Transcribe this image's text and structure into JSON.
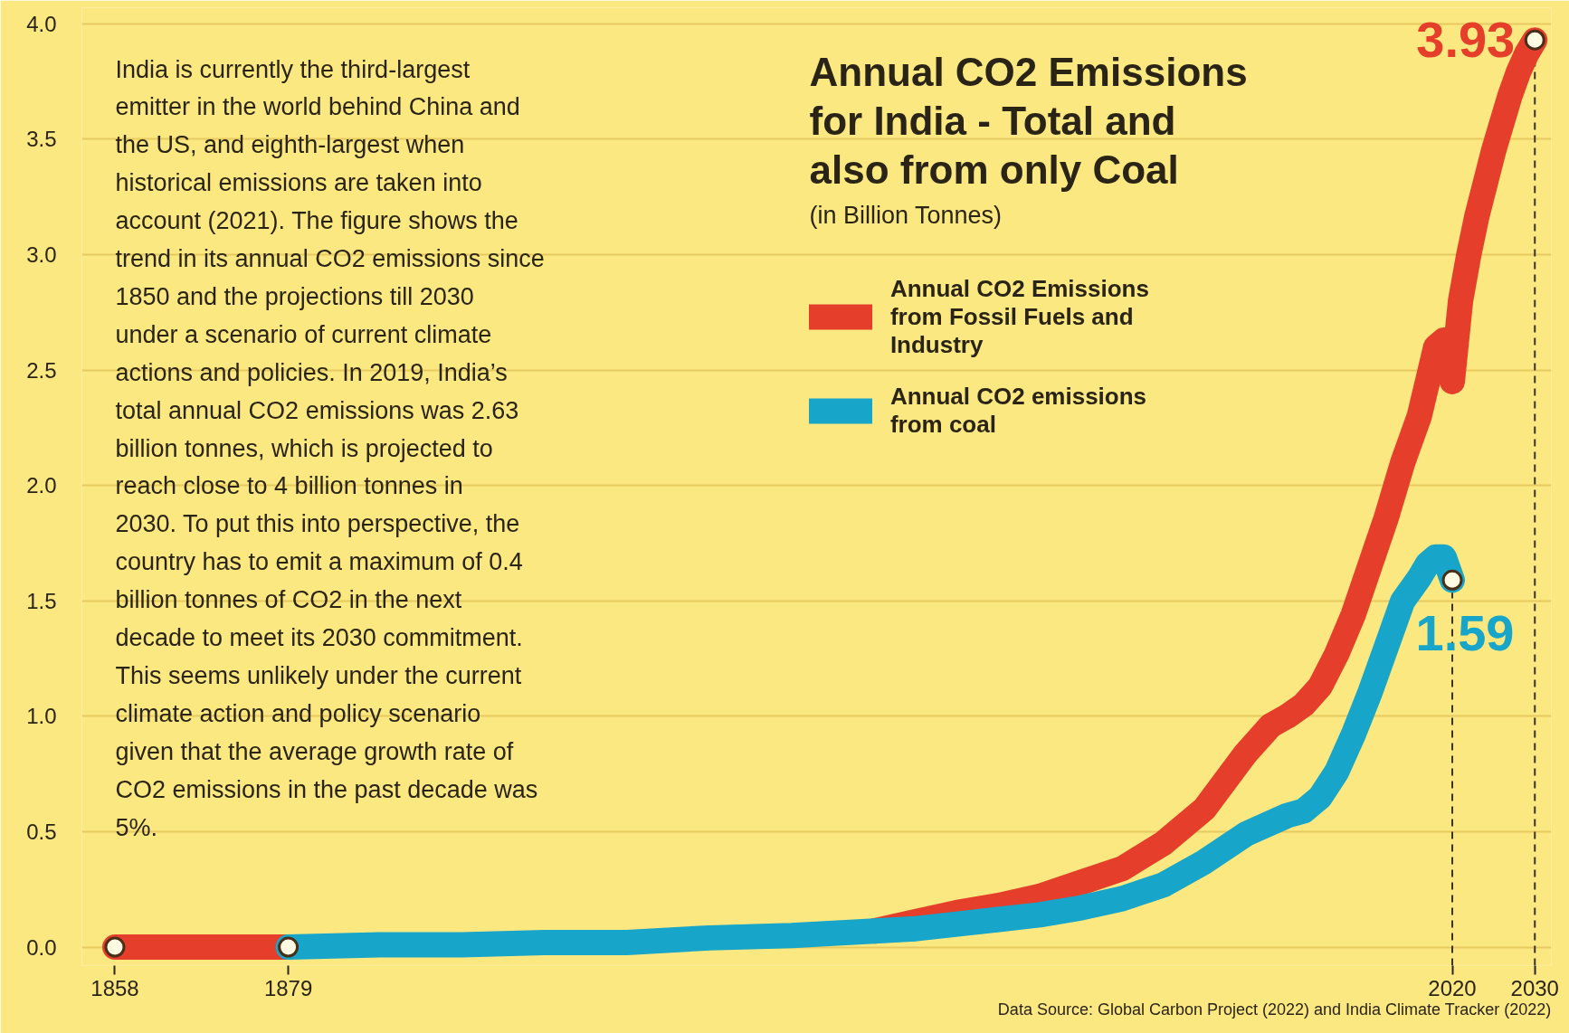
{
  "chart_data": {
    "type": "line",
    "title": "Annual CO2 Emissions for India - Total and also from only Coal",
    "subtitle": "(in Billion Tonnes)",
    "xlim": [
      1854,
      2032
    ],
    "xticks": [
      1858,
      1879,
      2020,
      2030
    ],
    "ylim": [
      -0.08,
      4.07
    ],
    "yticks": [
      {
        "value": 0,
        "label": "0.0"
      },
      0.5,
      {
        "value": 1,
        "label": "1.0"
      },
      1.5,
      {
        "value": 2,
        "label": "2.0"
      },
      2.5,
      {
        "value": 3,
        "label": "3.0"
      },
      3.5,
      {
        "value": 4,
        "label": "4.0"
      }
    ],
    "grid": "y",
    "legend": "top",
    "series": [
      {
        "name": "Annual CO2 Emissions from Fossil Fuels and Industry",
        "color": "#e53f2b",
        "x": [
          1858,
          1879,
          1880,
          1950,
          1955,
          1960,
          1965,
          1970,
          1975,
          1980,
          1985,
          1990,
          1995,
          1998,
          2000,
          2002,
          2004,
          2006,
          2008,
          2010,
          2012,
          2014,
          2016,
          2017,
          2018,
          2019,
          2020,
          2021,
          2022,
          2023,
          2024,
          2025,
          2026,
          2027,
          2028,
          2029,
          2030
        ],
        "values": [
          0,
          0,
          null,
          0.07,
          0.11,
          0.15,
          0.18,
          0.22,
          0.28,
          0.34,
          0.45,
          0.6,
          0.84,
          0.96,
          1.0,
          1.05,
          1.13,
          1.27,
          1.44,
          1.65,
          1.86,
          2.1,
          2.3,
          2.45,
          2.6,
          2.63,
          2.45,
          2.8,
          3.0,
          3.17,
          3.31,
          3.45,
          3.57,
          3.69,
          3.79,
          3.87,
          3.93
        ],
        "value_labels": [
          null,
          null,
          null,
          null,
          null,
          null,
          null,
          null,
          null,
          null,
          null,
          null,
          null,
          null,
          null,
          null,
          null,
          null,
          null,
          null,
          null,
          null,
          null,
          null,
          null,
          null,
          null,
          null,
          null,
          null,
          null,
          null,
          null,
          null,
          null,
          null,
          "3.93"
        ]
      },
      {
        "name": "Annual CO2 emissions from coal",
        "color": "#17a5c9",
        "x": [
          1879,
          1890,
          1900,
          1910,
          1920,
          1930,
          1940,
          1950,
          1955,
          1960,
          1965,
          1970,
          1975,
          1980,
          1985,
          1990,
          1995,
          2000,
          2002,
          2004,
          2006,
          2008,
          2010,
          2012,
          2014,
          2016,
          2017,
          2018,
          2019,
          2020
        ],
        "values": [
          0,
          0.01,
          0.01,
          0.02,
          0.02,
          0.04,
          0.05,
          0.07,
          0.08,
          0.1,
          0.12,
          0.14,
          0.17,
          0.21,
          0.27,
          0.37,
          0.49,
          0.57,
          0.59,
          0.65,
          0.76,
          0.92,
          1.1,
          1.3,
          1.5,
          1.6,
          1.66,
          1.69,
          1.69,
          1.59
        ],
        "value_labels": [
          null,
          null,
          null,
          null,
          null,
          null,
          null,
          null,
          null,
          null,
          null,
          null,
          null,
          null,
          null,
          null,
          null,
          null,
          null,
          null,
          null,
          null,
          null,
          null,
          null,
          null,
          null,
          null,
          null,
          "1.59"
        ]
      },
      {
        "type": "scatter",
        "marker": "circle",
        "color": "#fffbe3",
        "x": [
          1858,
          1879,
          2020,
          2030
        ],
        "values": [
          0,
          0,
          1.59,
          3.93
        ]
      }
    ],
    "ref_lines": [
      {
        "axis": "x",
        "value": 2020,
        "line_style": "dashed",
        "color": "#3d3322"
      },
      {
        "axis": "x",
        "value": 2030,
        "line_style": "dashed",
        "color": "#3d3322"
      }
    ],
    "annotations": [
      "India is currently the third-largest emitter in the world behind China and the US, and eighth-largest when historical emissions are taken into account (2021). The figure shows the trend in its annual CO2 emissions since 1850 and the projections till 2030 under a scenario of current climate actions and policies. In 2019, India’s total annual CO2 emissions was 2.63 billion tonnes, which is projected to reach close to 4 billion tonnes in 2030. To put this into perspective, the country has to emit a maximum of 0.4 billion tonnes of CO2 in the next decade to meet its 2030 commitment. This seems unlikely under the current climate action and policy scenario given that the average growth rate of CO2 emissions in the past decade was 5%.",
      "Data Source: Global Carbon Project (2022) and India Climate Tracker (2022)"
    ]
  }
}
